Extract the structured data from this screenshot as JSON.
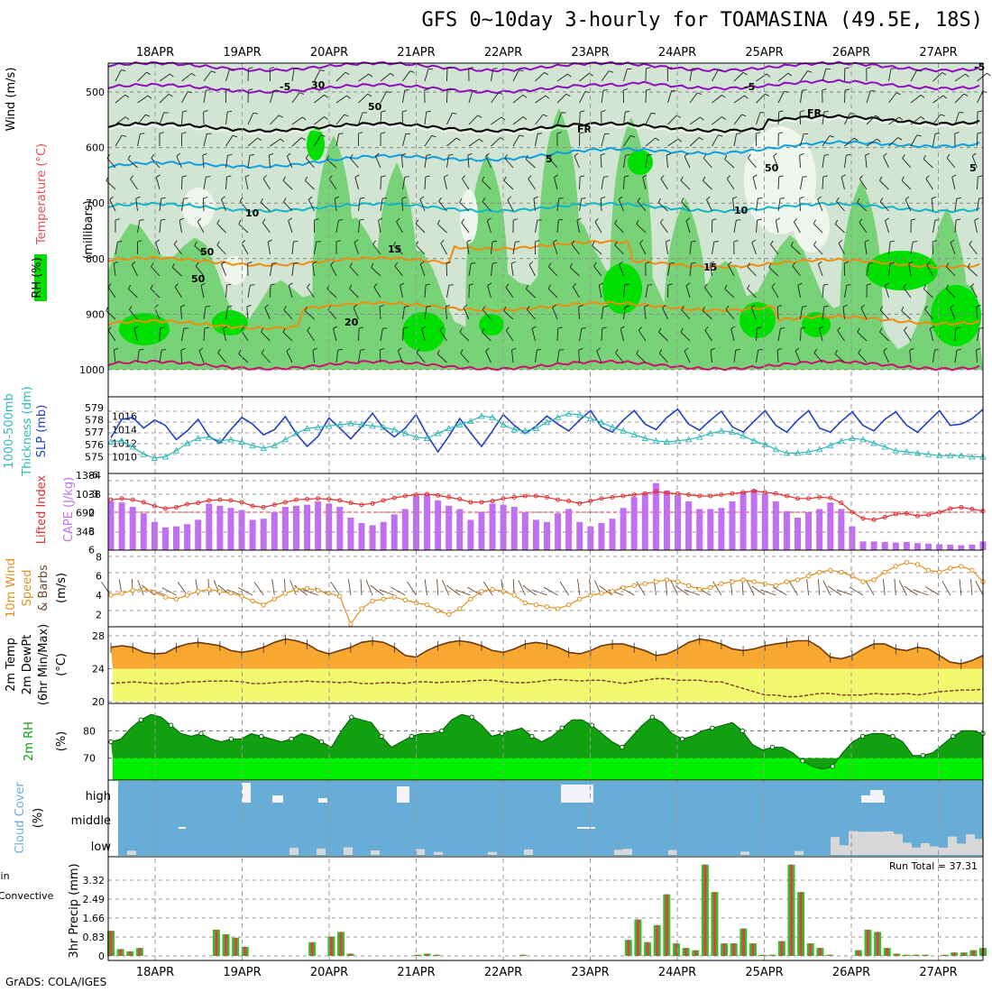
{
  "title": "GFS 0~10day 3-hourly for TOAMASINA (49.5E, 18S)",
  "credit": "GrADS: COLA/IGES",
  "colors": {
    "rh_light": "#d2e4d2",
    "rh_mid": "#78d278",
    "rh_strong": "#00e000",
    "temp_purple": "#9010c0",
    "temp_black": "#000000",
    "temp_blue": "#10a0e0",
    "temp_cyan": "#10b8c8",
    "temp_orange": "#f08c10",
    "temp_magenta": "#d01070",
    "slp": "#2040c0",
    "thickness": "#30b8b8",
    "li": "#e03030",
    "cape": "#c070f0",
    "wind_speed": "#e09020",
    "tmax_fill": "#f8a830",
    "dewpt_fill": "#f2f870",
    "rh2m_dark": "#10a010",
    "rh2m_bright": "#00f000",
    "cloud_bg": "#68acd8",
    "cloud_bar": "#f4f4f8",
    "precip_total": "#30c030",
    "precip_conv": "#e04040"
  },
  "dates": [
    "18APR",
    "19APR",
    "20APR",
    "21APR",
    "22APR",
    "23APR",
    "24APR",
    "25APR",
    "26APR",
    "27APR"
  ],
  "panels": {
    "upper": {
      "labels": [
        "Wind",
        "(m/s)",
        "Temperature",
        "(°C)",
        "RH",
        "(%)",
        "(millibars)"
      ],
      "ticks": [
        "500",
        "600",
        "700",
        "800",
        "900",
        "1000"
      ],
      "contour_labels": [
        "-5",
        "-5",
        "-5",
        "FR",
        "FR",
        "5",
        "5",
        "10",
        "10",
        "15",
        "15",
        "20",
        "30",
        "50",
        "50",
        "50",
        "50"
      ]
    },
    "slp": {
      "labels": [
        "1000-500mb",
        "Thickness (dm)",
        "SLP (mb)"
      ],
      "left_ticks": [
        "579",
        "578",
        "577",
        "576",
        "575"
      ],
      "right_ticks": [
        "1016",
        "1014",
        "1012",
        "1010"
      ]
    },
    "li": {
      "labels": [
        "Lifted Index",
        "CAPE (J/kg)"
      ],
      "left_ticks": [
        "-6",
        "-3",
        "0",
        "3",
        "6"
      ],
      "right_ticks": [
        "1384",
        "1038",
        "692",
        "346"
      ]
    },
    "wind10": {
      "labels": [
        "10m Wind",
        "Speed",
        "& Barbs",
        "(m/s)"
      ],
      "ticks": [
        "8",
        "6",
        "4",
        "2"
      ]
    },
    "temp2m": {
      "labels": [
        "2m Temp",
        "2m DewPt",
        "(6hr Min/Max)",
        "(°C)"
      ],
      "ticks": [
        "28",
        "24",
        "20"
      ]
    },
    "rh2m": {
      "labels": [
        "2m RH",
        "(%)"
      ],
      "ticks": [
        "80",
        "70"
      ]
    },
    "cloud": {
      "labels": [
        "Cloud Cover",
        "(%)"
      ],
      "levels": [
        "high",
        "middle",
        "low"
      ]
    },
    "precip": {
      "labels": [
        "Total / Rain",
        "Convective",
        "3hr Precip (mm)"
      ],
      "ticks": [
        "3.32",
        "2.49",
        "1.66",
        "0.83",
        "0"
      ],
      "run_total": "Run Total = 37.31"
    }
  },
  "chart_data": [
    {
      "type": "heatmap",
      "name": "RH / Temperature / Wind cross-section",
      "y_axis": "millibars",
      "ylim": [
        1000,
        450
      ],
      "rh_levels": [
        30,
        50,
        70,
        90
      ],
      "temperature_contours_c": [
        -5,
        0,
        5,
        10,
        15,
        20
      ]
    },
    {
      "type": "line",
      "x": "3-hourly steps 17APR12Z-27APR12Z",
      "series": [
        {
          "name": "SLP (mb)",
          "values": [
            1012.8,
            1015.5,
            1015.8,
            1014.2,
            1015.4,
            1014.6,
            1012.5,
            1013.8,
            1015.5,
            1013.0,
            1012.0,
            1014.0,
            1015.8,
            1014.8,
            1013.2,
            1014.0,
            1015.9,
            1013.4,
            1011.5,
            1013.0,
            1015.7,
            1014.2,
            1012.6,
            1014.4,
            1016.4,
            1014.2,
            1012.9,
            1014.2,
            1016.2,
            1013.2,
            1010.7,
            1013.0,
            1015.6,
            1013.5,
            1011.5,
            1013.8,
            1016.2,
            1014.6,
            1013.4,
            1014.5,
            1016.0,
            1014.8,
            1013.8,
            1015.4,
            1016.8,
            1014.4,
            1013.6,
            1015.4,
            1016.8,
            1014.8,
            1014.0,
            1015.8,
            1017.0,
            1014.8,
            1013.9,
            1015.4,
            1016.7,
            1014.4,
            1013.6,
            1015.2,
            1016.8,
            1014.6,
            1013.6,
            1015.4,
            1016.8,
            1014.2,
            1013.6,
            1015.2,
            1016.6,
            1014.6,
            1013.8,
            1015.5,
            1016.6,
            1014.6,
            1013.6,
            1015.2,
            1016.8,
            1014.6,
            1014.8,
            1015.6,
            1017.0
          ]
        },
        {
          "name": "1000-500mb Thickness (dm)",
          "values": [
            576.2,
            576.3,
            575.8,
            575.2,
            574.9,
            575.0,
            575.5,
            576.1,
            576.5,
            576.6,
            576.3,
            576.4,
            576.2,
            575.9,
            575.7,
            575.9,
            576.4,
            576.9,
            577.3,
            577.4,
            577.5,
            577.6,
            577.7,
            577.6,
            577.5,
            577.4,
            577.2,
            576.9,
            576.6,
            576.5,
            576.9,
            577.3,
            577.6,
            577.9,
            578.3,
            578.2,
            577.6,
            577.2,
            577.1,
            577.3,
            577.8,
            578.2,
            578.5,
            578.4,
            578.1,
            577.8,
            577.4,
            577.1,
            576.8,
            576.5,
            576.3,
            576.2,
            576.3,
            576.4,
            576.6,
            576.9,
            577.1,
            577.0,
            576.7,
            576.3,
            576.0,
            575.6,
            575.3,
            575.3,
            575.4,
            575.6,
            575.9,
            576.3,
            576.5,
            576.4,
            576.1,
            575.8,
            575.5,
            575.4,
            575.3,
            575.2,
            575.1,
            575.1,
            575.1,
            575.0,
            575.0
          ]
        }
      ]
    },
    {
      "type": "bar",
      "series": [
        {
          "name": "CAPE (J/kg)",
          "values": [
            900,
            880,
            800,
            680,
            520,
            420,
            440,
            480,
            560,
            860,
            820,
            780,
            740,
            560,
            580,
            700,
            800,
            820,
            840,
            900,
            860,
            800,
            600,
            500,
            460,
            520,
            660,
            760,
            1000,
            1020,
            920,
            820,
            760,
            560,
            700,
            860,
            840,
            800,
            700,
            560,
            520,
            680,
            760,
            520,
            440,
            500,
            580,
            780,
            980,
            1060,
            1240,
            1100,
            1020,
            900,
            760,
            760,
            780,
            900,
            1080,
            1120,
            1050,
            900,
            720,
            600,
            700,
            760,
            880,
            760,
            440,
            160,
            160,
            150,
            140,
            150,
            130,
            120,
            110,
            100,
            90,
            100,
            160
          ]
        },
        {
          "name": "Lifted Index",
          "values": [
            -2.0,
            -2.2,
            -2.0,
            -1.6,
            -1.0,
            -0.6,
            -0.8,
            -1.3,
            -1.5,
            -1.9,
            -2.0,
            -1.9,
            -1.6,
            -1.0,
            -0.8,
            -1.2,
            -1.6,
            -2.0,
            -2.1,
            -2.2,
            -2.1,
            -1.9,
            -1.5,
            -1.2,
            -1.4,
            -1.9,
            -2.3,
            -2.6,
            -2.8,
            -2.9,
            -2.7,
            -2.4,
            -2.1,
            -1.6,
            -1.6,
            -1.8,
            -2.2,
            -2.4,
            -2.6,
            -2.6,
            -2.4,
            -2.0,
            -1.8,
            -1.4,
            -1.8,
            -2.2,
            -2.4,
            -2.6,
            -2.8,
            -3.0,
            -3.3,
            -3.1,
            -3.0,
            -2.8,
            -2.6,
            -2.6,
            -2.8,
            -3.0,
            -3.2,
            -3.4,
            -3.2,
            -3.0,
            -2.6,
            -2.2,
            -2.2,
            -2.4,
            -2.3,
            -1.5,
            0.0,
            1.0,
            1.2,
            0.8,
            0.3,
            0.2,
            0.6,
            0.4,
            0.0,
            -0.6,
            -0.8,
            -0.5,
            -0.2
          ]
        }
      ]
    },
    {
      "type": "line",
      "series": [
        {
          "name": "10m Wind Speed (m/s)",
          "values": [
            4.0,
            4.2,
            4.5,
            4.6,
            4.3,
            3.8,
            3.6,
            4.0,
            4.4,
            4.6,
            4.4,
            4.2,
            3.9,
            3.4,
            3.0,
            3.6,
            4.2,
            4.6,
            4.7,
            4.5,
            4.2,
            3.9,
            1.0,
            2.6,
            3.4,
            3.6,
            3.8,
            3.5,
            3.2,
            3.0,
            2.4,
            2.0,
            2.6,
            3.6,
            4.4,
            4.6,
            4.4,
            4.0,
            3.2,
            3.0,
            2.8,
            2.6,
            3.0,
            3.6,
            4.0,
            4.2,
            4.4,
            4.8,
            5.0,
            5.2,
            5.4,
            5.6,
            5.4,
            5.0,
            4.6,
            4.8,
            5.2,
            5.4,
            5.6,
            5.4,
            5.2,
            5.0,
            5.4,
            5.6,
            6.0,
            6.4,
            6.6,
            6.4,
            6.0,
            5.4,
            5.6,
            6.4,
            7.0,
            7.4,
            7.2,
            6.6,
            6.4,
            6.8,
            7.0,
            6.6,
            5.4
          ]
        }
      ]
    },
    {
      "type": "area",
      "series": [
        {
          "name": "2m Temp (°C)",
          "values": [
            26.6,
            26.8,
            26.6,
            26.0,
            25.8,
            25.9,
            26.6,
            27.0,
            27.2,
            27.0,
            26.8,
            26.2,
            26.0,
            26.2,
            26.6,
            27.2,
            27.6,
            27.4,
            27.0,
            26.2,
            25.8,
            26.2,
            26.6,
            27.2,
            27.4,
            27.2,
            26.6,
            25.6,
            25.4,
            26.2,
            26.8,
            27.2,
            27.4,
            27.2,
            26.8,
            26.2,
            26.0,
            26.4,
            27.0,
            27.2,
            27.0,
            26.6,
            26.0,
            25.8,
            26.2,
            26.8,
            27.0,
            27.0,
            26.6,
            26.2,
            25.6,
            25.8,
            26.4,
            27.2,
            27.6,
            27.4,
            27.0,
            26.4,
            26.2,
            26.4,
            26.8,
            27.0,
            27.2,
            27.4,
            27.4,
            26.6,
            25.4,
            25.2,
            25.6,
            26.4,
            27.0,
            27.0,
            26.4,
            26.2,
            26.6,
            26.4,
            25.6,
            24.8,
            24.6,
            25.0,
            25.6
          ]
        },
        {
          "name": "2m DewPt (°C)",
          "values": [
            22.2,
            22.3,
            22.4,
            22.3,
            22.2,
            22.2,
            22.2,
            22.4,
            22.4,
            22.5,
            22.5,
            22.5,
            22.4,
            22.2,
            22.2,
            22.3,
            22.4,
            22.4,
            22.5,
            22.4,
            22.4,
            22.3,
            22.4,
            22.2,
            22.2,
            22.3,
            22.3,
            22.2,
            22.4,
            22.4,
            22.3,
            22.4,
            22.4,
            22.5,
            22.6,
            22.6,
            22.4,
            22.3,
            22.3,
            22.4,
            22.6,
            22.7,
            22.6,
            22.5,
            22.6,
            22.6,
            22.4,
            22.2,
            22.4,
            22.6,
            22.8,
            22.8,
            22.6,
            22.6,
            22.6,
            22.4,
            22.4,
            22.0,
            21.6,
            21.2,
            20.8,
            20.8,
            20.6,
            20.6,
            20.8,
            21.0,
            21.0,
            20.8,
            20.8,
            20.8,
            21.0,
            20.9,
            20.9,
            21.0,
            20.8,
            21.0,
            21.2,
            21.3,
            21.4,
            21.4,
            21.5
          ]
        }
      ]
    },
    {
      "type": "area",
      "series": [
        {
          "name": "2m RH (%)",
          "values": [
            76,
            77,
            81,
            84,
            86,
            85,
            82,
            79,
            78,
            79,
            77,
            76,
            77,
            77,
            79,
            78,
            77,
            76,
            77,
            79,
            78,
            76,
            74,
            80,
            85,
            84,
            83,
            78,
            74,
            76,
            78,
            79,
            79,
            80,
            84,
            86,
            85,
            82,
            78,
            79,
            80,
            81,
            78,
            76,
            78,
            81,
            84,
            84,
            82,
            79,
            76,
            74,
            78,
            82,
            85,
            83,
            79,
            77,
            78,
            80,
            81,
            82,
            83,
            80,
            75,
            73,
            74,
            74,
            72,
            69,
            67,
            66,
            67,
            72,
            76,
            78,
            79,
            79,
            78,
            76,
            71,
            71,
            72,
            75,
            78,
            80,
            80,
            79
          ]
        }
      ]
    },
    {
      "type": "bar",
      "categories": [
        "high",
        "middle",
        "low"
      ],
      "ylim": [
        0,
        100
      ]
    },
    {
      "type": "bar",
      "ylabel": "3hr Precip (mm)",
      "ylim": [
        0,
        4.15
      ],
      "series": [
        {
          "name": "Total / Rain",
          "values": [
            1.1,
            0.3,
            0.2,
            0.35,
            0,
            0,
            0,
            0,
            0,
            0,
            0,
            1.15,
            0.95,
            0.8,
            0.4,
            0,
            0,
            0,
            0,
            0,
            0,
            0.6,
            0,
            0.85,
            1.05,
            0.1,
            0,
            0,
            0,
            0,
            0,
            0,
            0.05,
            0.1,
            0.05,
            0,
            0,
            0,
            0,
            0,
            0,
            0,
            0,
            0.05,
            0,
            0,
            0,
            0,
            0,
            0,
            0,
            0,
            0,
            0,
            0.7,
            1.6,
            0.6,
            1.35,
            2.7,
            0.55,
            0.35,
            0.25,
            4.0,
            2.8,
            0.55,
            0.55,
            1.2,
            0.55,
            0.05,
            0.05,
            0.65,
            4.0,
            2.8,
            0.55,
            0.35,
            0.05,
            0,
            0,
            0.25,
            1.15,
            1.05,
            0.35,
            0.1,
            0.05,
            0.05,
            0.05,
            0,
            0.05,
            0.15,
            0.15,
            0.25,
            0.35
          ]
        }
      ]
    }
  ]
}
